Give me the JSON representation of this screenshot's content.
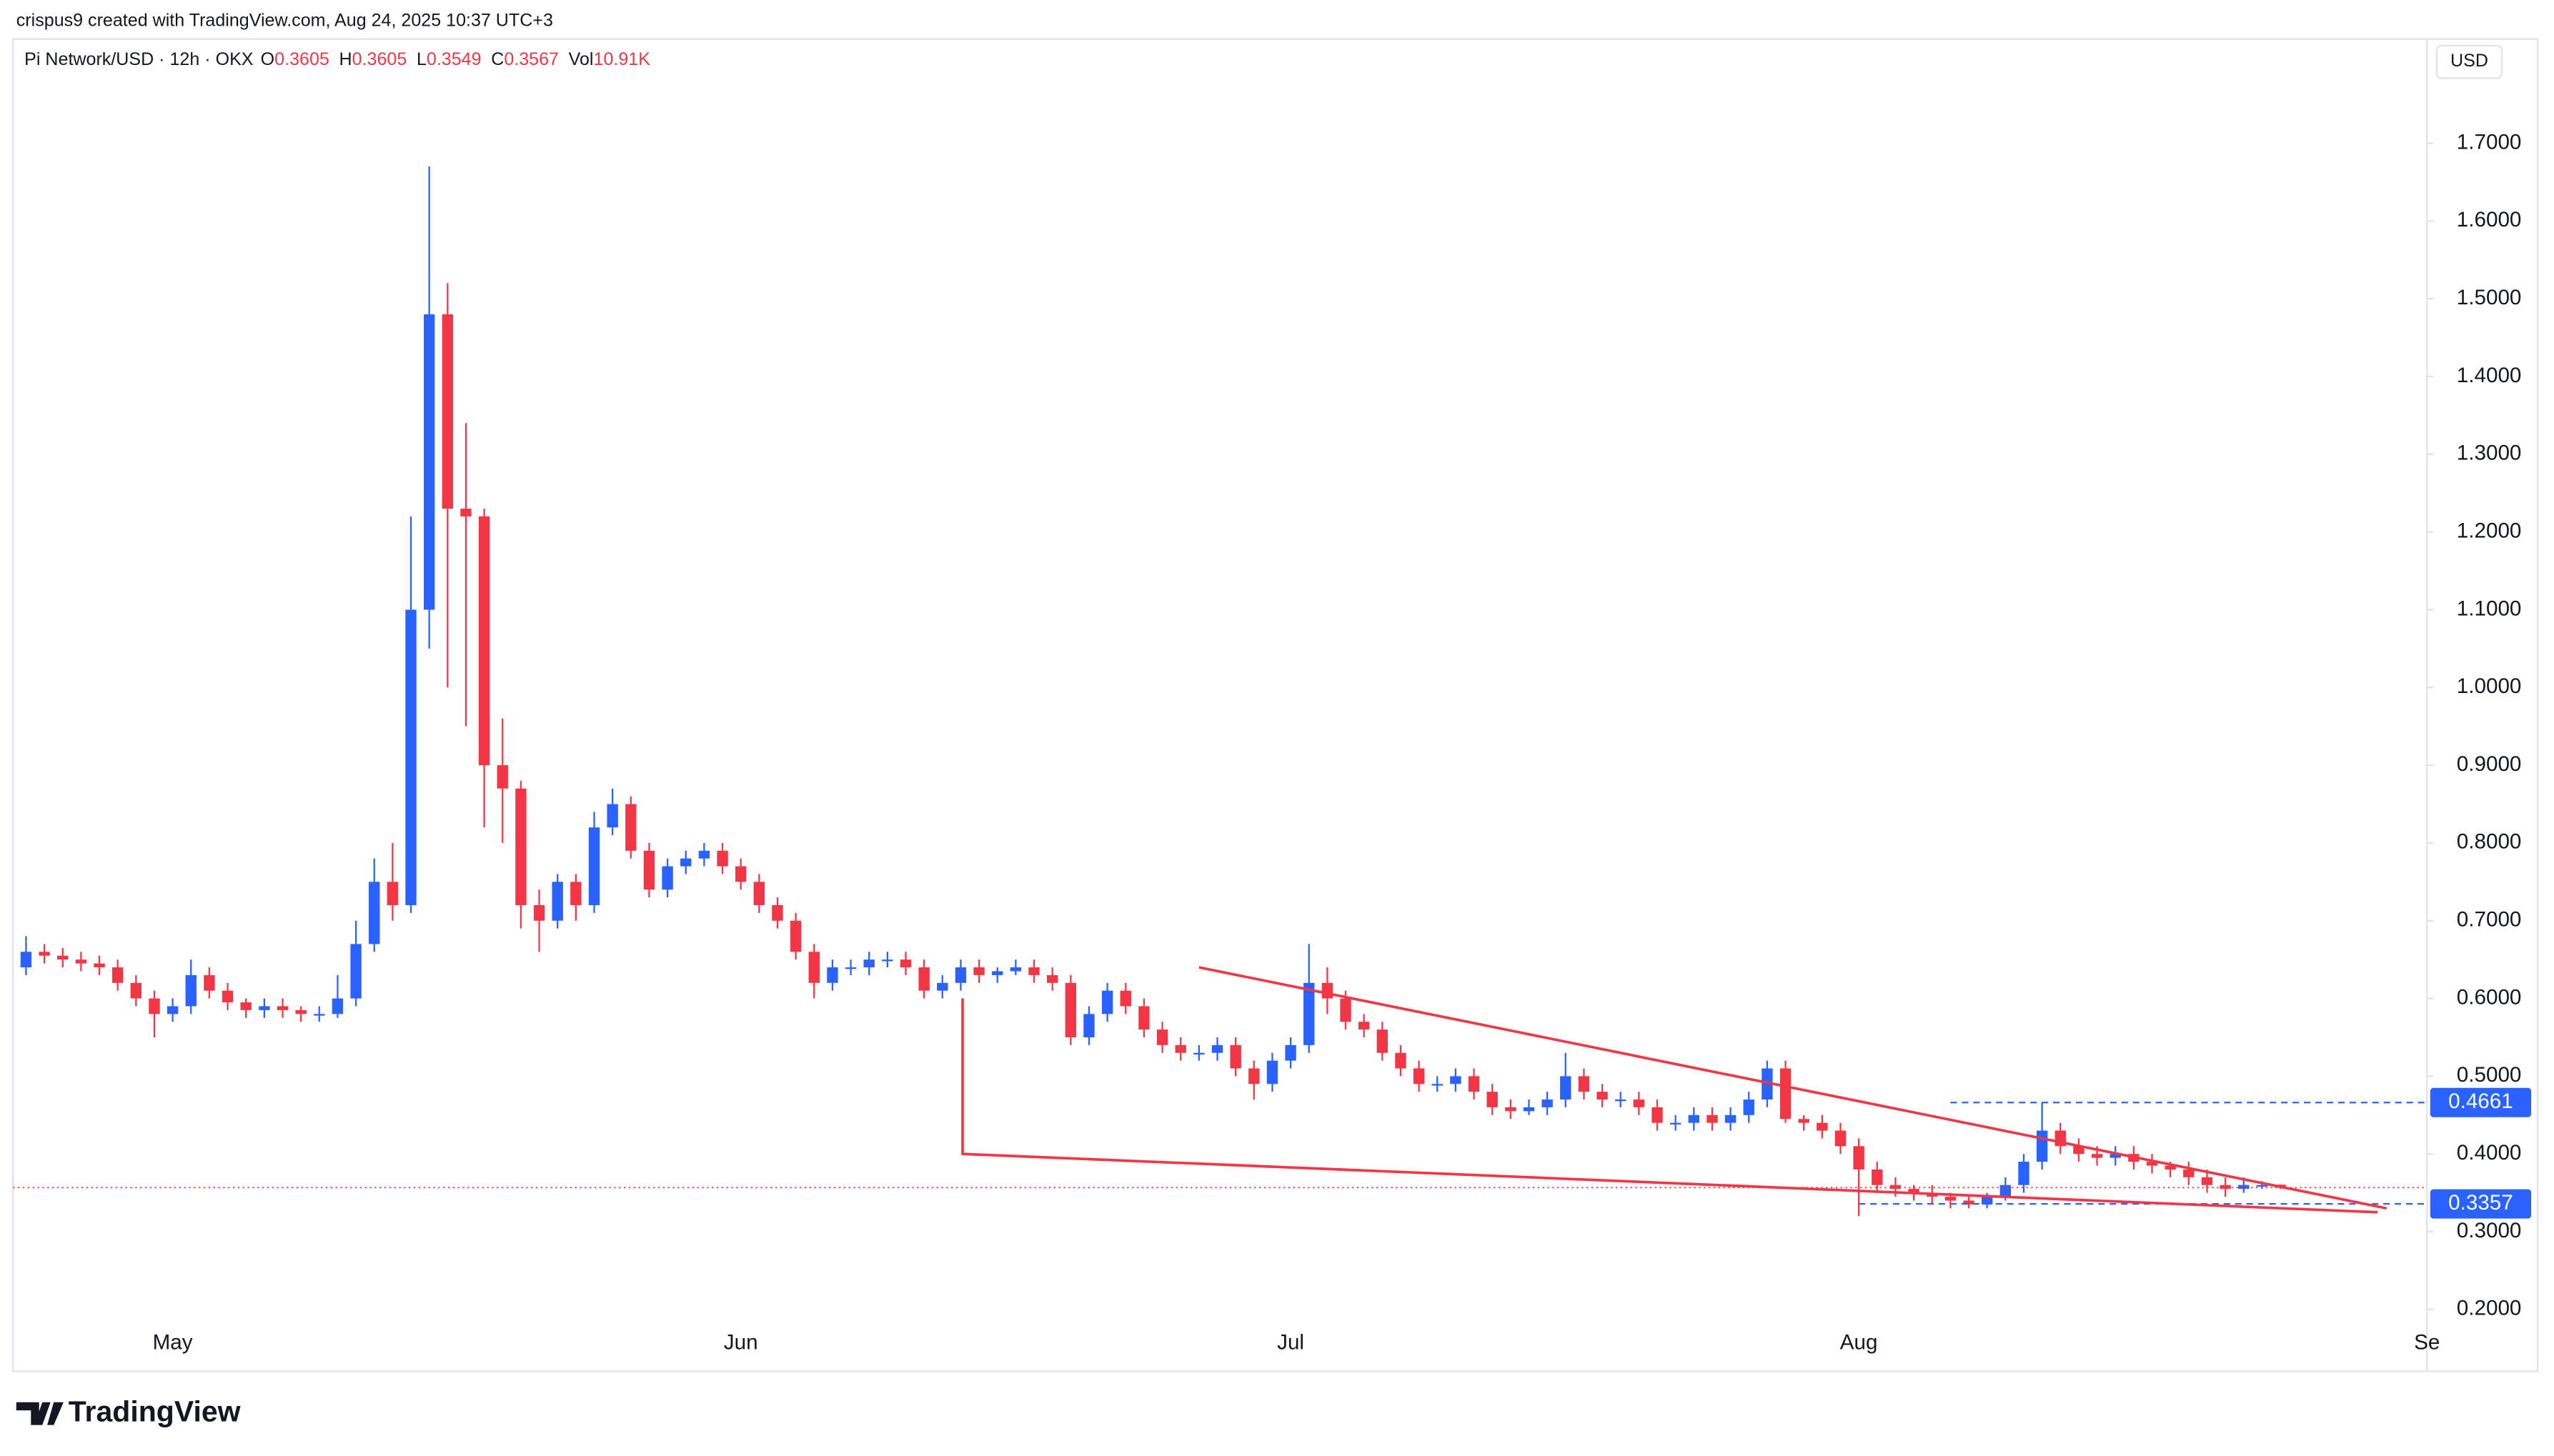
{
  "header": {
    "attribution": "crispus9 created with TradingView.com, Aug 24, 2025 10:37 UTC+3",
    "symbol": "Pi Network/USD · 12h · OKX",
    "ohlc": [
      {
        "label": "O",
        "value": 0.3605
      },
      {
        "label": "H",
        "value": 0.3605
      },
      {
        "label": "L",
        "value": 0.3549
      },
      {
        "label": "C",
        "value": 0.3567
      },
      {
        "label": "Vol",
        "value": "10.91K"
      }
    ],
    "currency": "USD",
    "brand": "TradingView"
  },
  "chart_data": {
    "type": "candlestick",
    "up_color": "#2962ff",
    "down_color": "#f23645",
    "open": [
      0.64,
      0.66,
      0.655,
      0.65,
      0.645,
      0.64,
      0.62,
      0.6,
      0.58,
      0.59,
      0.63,
      0.61,
      0.595,
      0.585,
      0.59,
      0.585,
      0.58,
      0.58,
      0.6,
      0.67,
      0.75,
      0.72,
      1.1,
      1.48,
      1.23,
      1.22,
      0.9,
      0.87,
      0.72,
      0.7,
      0.75,
      0.72,
      0.82,
      0.85,
      0.79,
      0.74,
      0.77,
      0.78,
      0.79,
      0.77,
      0.75,
      0.72,
      0.7,
      0.66,
      0.62,
      0.64,
      0.64,
      0.65,
      0.65,
      0.64,
      0.61,
      0.62,
      0.64,
      0.63,
      0.635,
      0.64,
      0.63,
      0.62,
      0.55,
      0.58,
      0.61,
      0.59,
      0.56,
      0.54,
      0.53,
      0.53,
      0.54,
      0.51,
      0.49,
      0.52,
      0.54,
      0.62,
      0.6,
      0.57,
      0.56,
      0.53,
      0.51,
      0.49,
      0.49,
      0.5,
      0.48,
      0.46,
      0.455,
      0.46,
      0.47,
      0.5,
      0.48,
      0.47,
      0.47,
      0.46,
      0.44,
      0.44,
      0.45,
      0.44,
      0.45,
      0.47,
      0.51,
      0.445,
      0.44,
      0.43,
      0.41,
      0.38,
      0.36,
      0.355,
      0.35,
      0.345,
      0.34,
      0.335,
      0.345,
      0.36,
      0.39,
      0.43,
      0.41,
      0.4,
      0.395,
      0.4,
      0.39,
      0.385,
      0.38,
      0.37,
      0.36,
      0.355,
      0.36,
      0.3605
    ],
    "high": [
      0.68,
      0.67,
      0.665,
      0.66,
      0.655,
      0.65,
      0.63,
      0.61,
      0.6,
      0.65,
      0.64,
      0.62,
      0.6,
      0.6,
      0.6,
      0.59,
      0.59,
      0.63,
      0.7,
      0.78,
      0.8,
      1.22,
      1.67,
      1.52,
      1.34,
      1.23,
      0.96,
      0.88,
      0.74,
      0.76,
      0.76,
      0.84,
      0.87,
      0.86,
      0.8,
      0.78,
      0.79,
      0.8,
      0.8,
      0.78,
      0.76,
      0.73,
      0.71,
      0.67,
      0.65,
      0.65,
      0.66,
      0.66,
      0.66,
      0.65,
      0.63,
      0.65,
      0.65,
      0.64,
      0.65,
      0.65,
      0.64,
      0.63,
      0.59,
      0.62,
      0.62,
      0.6,
      0.57,
      0.55,
      0.54,
      0.55,
      0.55,
      0.52,
      0.53,
      0.55,
      0.67,
      0.64,
      0.61,
      0.58,
      0.57,
      0.54,
      0.52,
      0.5,
      0.51,
      0.51,
      0.49,
      0.47,
      0.47,
      0.48,
      0.53,
      0.51,
      0.49,
      0.48,
      0.48,
      0.47,
      0.45,
      0.46,
      0.46,
      0.46,
      0.48,
      0.52,
      0.52,
      0.45,
      0.45,
      0.44,
      0.42,
      0.39,
      0.37,
      0.36,
      0.36,
      0.35,
      0.345,
      0.35,
      0.37,
      0.4,
      0.4661,
      0.44,
      0.42,
      0.41,
      0.41,
      0.41,
      0.4,
      0.39,
      0.39,
      0.38,
      0.37,
      0.37,
      0.365,
      0.3605
    ],
    "low": [
      0.63,
      0.645,
      0.64,
      0.635,
      0.63,
      0.61,
      0.59,
      0.55,
      0.57,
      0.58,
      0.6,
      0.585,
      0.575,
      0.575,
      0.575,
      0.57,
      0.57,
      0.575,
      0.59,
      0.66,
      0.7,
      0.71,
      1.05,
      1.0,
      0.95,
      0.82,
      0.8,
      0.69,
      0.66,
      0.69,
      0.7,
      0.71,
      0.81,
      0.78,
      0.73,
      0.73,
      0.76,
      0.77,
      0.76,
      0.74,
      0.71,
      0.69,
      0.65,
      0.6,
      0.61,
      0.63,
      0.63,
      0.64,
      0.63,
      0.6,
      0.6,
      0.61,
      0.62,
      0.62,
      0.63,
      0.62,
      0.61,
      0.54,
      0.54,
      0.57,
      0.58,
      0.55,
      0.53,
      0.52,
      0.52,
      0.52,
      0.5,
      0.47,
      0.48,
      0.51,
      0.53,
      0.58,
      0.56,
      0.55,
      0.52,
      0.5,
      0.48,
      0.48,
      0.48,
      0.47,
      0.45,
      0.445,
      0.45,
      0.45,
      0.46,
      0.47,
      0.46,
      0.46,
      0.45,
      0.43,
      0.43,
      0.43,
      0.43,
      0.43,
      0.44,
      0.46,
      0.44,
      0.43,
      0.42,
      0.4,
      0.32,
      0.35,
      0.345,
      0.34,
      0.335,
      0.33,
      0.33,
      0.33,
      0.34,
      0.35,
      0.38,
      0.4,
      0.39,
      0.385,
      0.385,
      0.38,
      0.375,
      0.37,
      0.36,
      0.35,
      0.345,
      0.35,
      0.355,
      0.3549
    ],
    "close": [
      0.66,
      0.655,
      0.65,
      0.645,
      0.64,
      0.62,
      0.6,
      0.58,
      0.59,
      0.63,
      0.61,
      0.595,
      0.585,
      0.59,
      0.585,
      0.58,
      0.58,
      0.6,
      0.67,
      0.75,
      0.72,
      1.1,
      1.48,
      1.23,
      1.22,
      0.9,
      0.87,
      0.72,
      0.7,
      0.75,
      0.72,
      0.82,
      0.85,
      0.79,
      0.74,
      0.77,
      0.78,
      0.79,
      0.77,
      0.75,
      0.72,
      0.7,
      0.66,
      0.62,
      0.64,
      0.64,
      0.65,
      0.65,
      0.64,
      0.61,
      0.62,
      0.64,
      0.63,
      0.635,
      0.64,
      0.63,
      0.62,
      0.55,
      0.58,
      0.61,
      0.59,
      0.56,
      0.54,
      0.53,
      0.53,
      0.54,
      0.51,
      0.49,
      0.52,
      0.54,
      0.62,
      0.6,
      0.57,
      0.56,
      0.53,
      0.51,
      0.49,
      0.49,
      0.5,
      0.48,
      0.46,
      0.455,
      0.46,
      0.47,
      0.5,
      0.48,
      0.47,
      0.47,
      0.46,
      0.44,
      0.44,
      0.45,
      0.44,
      0.45,
      0.47,
      0.51,
      0.445,
      0.44,
      0.43,
      0.41,
      0.38,
      0.36,
      0.355,
      0.35,
      0.345,
      0.34,
      0.335,
      0.345,
      0.36,
      0.39,
      0.43,
      0.41,
      0.4,
      0.395,
      0.4,
      0.39,
      0.385,
      0.38,
      0.37,
      0.36,
      0.355,
      0.36,
      0.36,
      0.3567
    ],
    "xlim": [
      -0.71,
      131.0
    ],
    "xticks": [
      {
        "value": 8,
        "label": "May"
      },
      {
        "value": 39,
        "label": "Jun"
      },
      {
        "value": 69,
        "label": "Jul"
      },
      {
        "value": 100,
        "label": "Aug"
      },
      {
        "value": 131,
        "label": "Se"
      }
    ],
    "ylim": [
      0.1204,
      1.834
    ],
    "yticks": [
      {
        "value": 0.2,
        "label": "0.2000"
      },
      {
        "value": 0.3,
        "label": "0.3000"
      },
      {
        "value": 0.4,
        "label": "0.4000"
      },
      {
        "value": 0.5,
        "label": "0.5000"
      },
      {
        "value": 0.6,
        "label": "0.6000"
      },
      {
        "value": 0.7,
        "label": "0.7000"
      },
      {
        "value": 0.8,
        "label": "0.8000"
      },
      {
        "value": 0.9,
        "label": "0.9000"
      },
      {
        "value": 1.0,
        "label": "1.0000"
      },
      {
        "value": 1.1,
        "label": "1.1000"
      },
      {
        "value": 1.2,
        "label": "1.2000"
      },
      {
        "value": 1.3,
        "label": "1.3000"
      },
      {
        "value": 1.4,
        "label": "1.4000"
      },
      {
        "value": 1.5,
        "label": "1.5000"
      },
      {
        "value": 1.6,
        "label": "1.6000"
      },
      {
        "value": 1.7,
        "label": "1.7000"
      }
    ],
    "grid": false,
    "price_lines": [
      {
        "value": 0.4661,
        "from": 105,
        "color": "#2962ff"
      },
      {
        "value": 0.3357,
        "from": 100,
        "color": "#2962ff"
      }
    ],
    "trendlines": [
      {
        "color": "#f23645",
        "points": [
          [
            64,
            0.64
          ],
          [
            128.8,
            0.33
          ]
        ]
      },
      {
        "color": "#f23645",
        "points": [
          [
            51.1,
            0.6
          ],
          [
            51.1,
            0.4
          ],
          [
            128.3,
            0.325
          ]
        ]
      }
    ]
  }
}
